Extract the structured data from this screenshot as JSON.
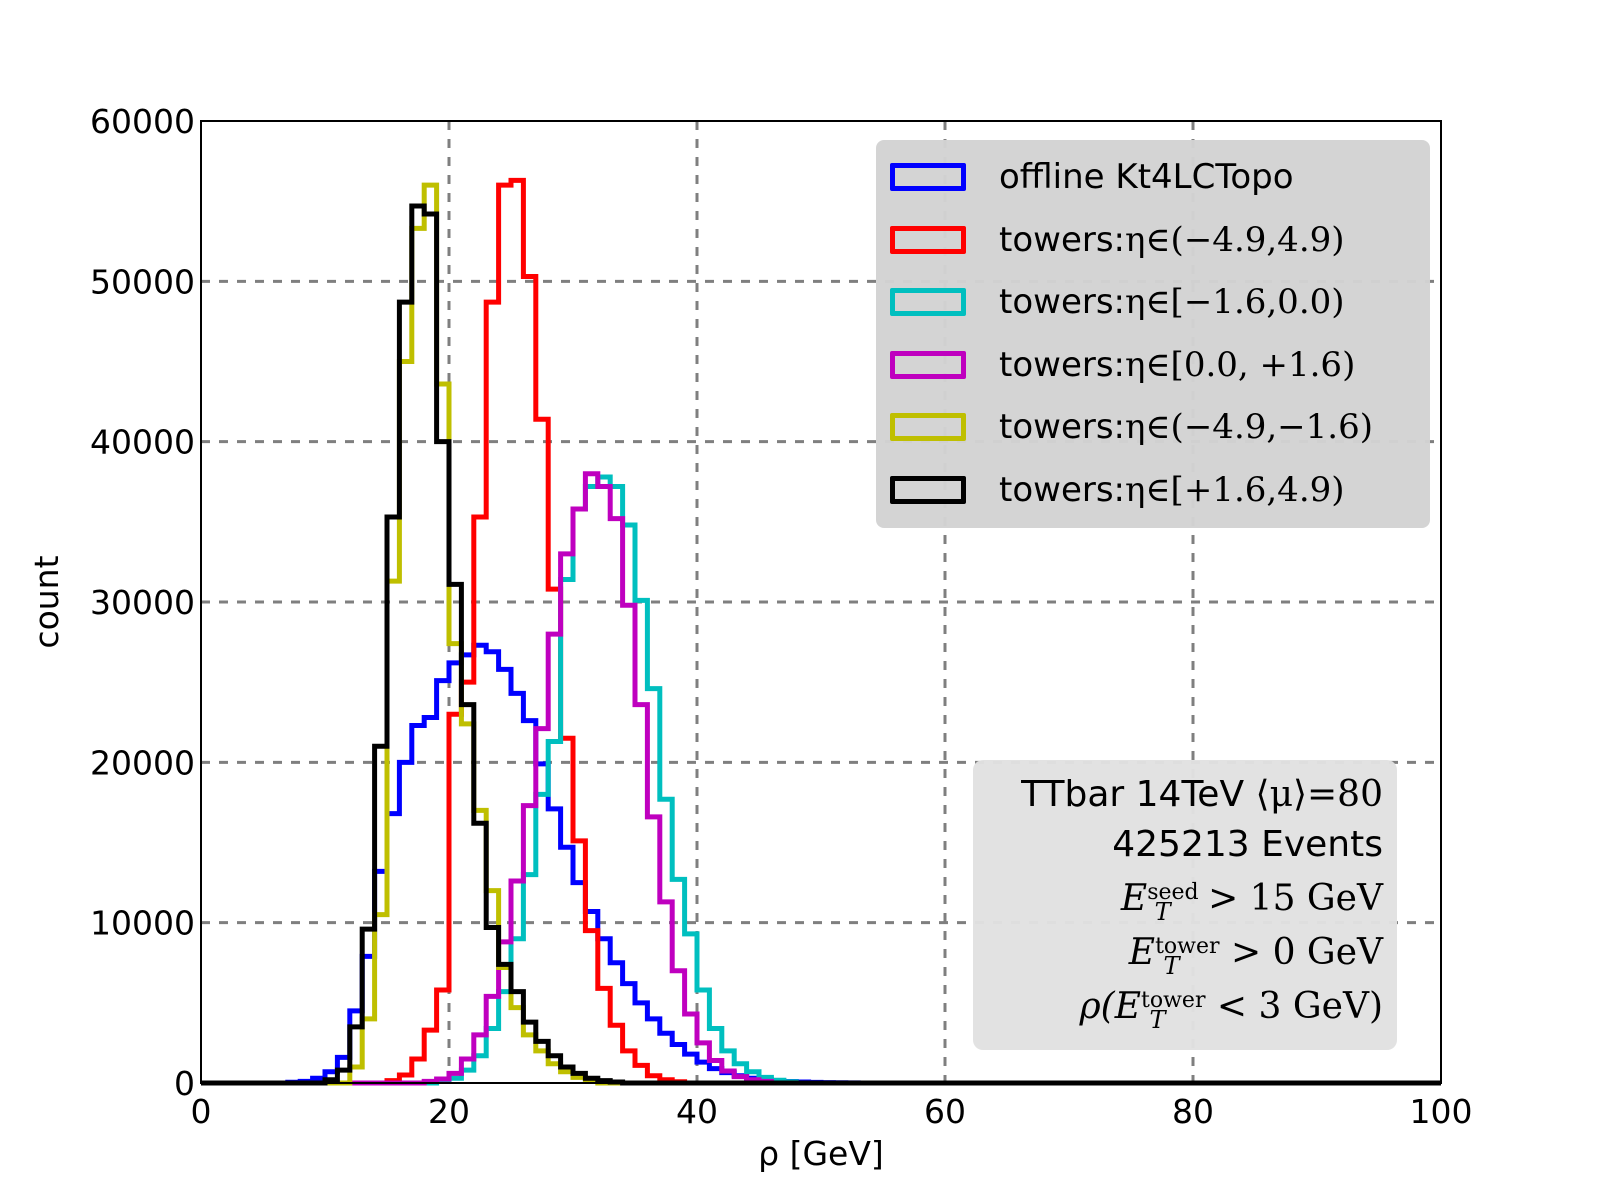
{
  "chart_data": {
    "type": "line",
    "subtype": "step-histogram",
    "xlabel": "ρ [GeV]",
    "ylabel": "count",
    "xlim": [
      0,
      100
    ],
    "ylim": [
      0,
      60000
    ],
    "xticks": [
      "0",
      "20",
      "40",
      "60",
      "80",
      "100"
    ],
    "xtick_values": [
      0,
      20,
      40,
      60,
      80,
      100
    ],
    "yticks": [
      "0",
      "10000",
      "20000",
      "30000",
      "40000",
      "50000",
      "60000"
    ],
    "ytick_values": [
      0,
      10000,
      20000,
      30000,
      40000,
      50000,
      60000
    ],
    "grid": true,
    "bin_width": 1,
    "legend_position": "top-right",
    "series": [
      {
        "name": "offline Kt4LCTopo",
        "color": "#0000ff",
        "start_bin": 7,
        "values": [
          50,
          100,
          300,
          700,
          1600,
          4500,
          7900,
          13200,
          16800,
          20000,
          22300,
          22800,
          25100,
          26200,
          26700,
          27300,
          26900,
          25800,
          24300,
          22600,
          19900,
          17100,
          14700,
          12500,
          10700,
          9000,
          7500,
          6200,
          5000,
          4000,
          3100,
          2400,
          1800,
          1300,
          900,
          650,
          450,
          300,
          200,
          130,
          90,
          60,
          40,
          25,
          15,
          10
        ]
      },
      {
        "name": "towers: η∈(−4.9,4.9)",
        "color": "#ff0000",
        "start_bin": 15,
        "values": [
          150,
          500,
          1500,
          3300,
          5800,
          23000,
          25000,
          35300,
          48700,
          56000,
          56300,
          50300,
          41400,
          30800,
          21500,
          15100,
          9500,
          5900,
          3600,
          2000,
          1100,
          450,
          200,
          80
        ]
      },
      {
        "name": "towers: η∈[−1.6,0.0)",
        "color": "#00bfbf",
        "start_bin": 19,
        "values": [
          100,
          300,
          800,
          1700,
          3400,
          5700,
          9000,
          13000,
          18000,
          21300,
          31400,
          35800,
          37200,
          37800,
          37200,
          34800,
          30100,
          24600,
          17700,
          12700,
          9300,
          5800,
          3400,
          2000,
          1200,
          700,
          350,
          170,
          80
        ]
      },
      {
        "name": "towers: η∈[0.0, +1.6)",
        "color": "#bf00bf",
        "start_bin": 18,
        "values": [
          100,
          250,
          600,
          1500,
          3000,
          5400,
          8800,
          12600,
          17300,
          22100,
          28000,
          33000,
          35800,
          38000,
          37200,
          35200,
          29800,
          23600,
          16600,
          11300,
          7000,
          4300,
          2500,
          1400,
          750,
          400,
          200,
          100
        ]
      },
      {
        "name": "towers: η∈(−4.9,−1.6)",
        "color": "#bfbf00",
        "start_bin": 12,
        "values": [
          1000,
          4000,
          10500,
          31300,
          45000,
          53300,
          56000,
          43600,
          27400,
          22400,
          17000,
          12000,
          7200,
          4700,
          3000,
          2000,
          1200,
          700,
          350,
          150
        ]
      },
      {
        "name": "towers: η∈[+1.6,4.9)",
        "color": "#000000",
        "start_bin": 10,
        "values": [
          200,
          800,
          3500,
          9600,
          21000,
          35300,
          48700,
          54700,
          54200,
          40000,
          31100,
          23600,
          16200,
          9700,
          7400,
          5700,
          3800,
          2600,
          1700,
          1000,
          600,
          300,
          150,
          60
        ]
      }
    ]
  },
  "legend": {
    "items": [
      {
        "text": "offline Kt4LCTopo",
        "math": "",
        "color": "#0000ff"
      },
      {
        "text": "towers: ",
        "math": "η∈(−4.9,4.9)",
        "color": "#ff0000"
      },
      {
        "text": "towers: ",
        "math": "η∈[−1.6,0.0)",
        "color": "#00bfbf"
      },
      {
        "text": "towers: ",
        "math": "η∈[0.0, +1.6)",
        "color": "#bf00bf"
      },
      {
        "text": "towers: ",
        "math": "η∈(−4.9,−1.6)",
        "color": "#bfbf00"
      },
      {
        "text": "towers: ",
        "math": "η∈[+1.6,4.9)",
        "color": "#000000"
      }
    ]
  },
  "annotation": {
    "line1_text": "TTbar 14TeV ",
    "line1_math": "⟨μ⟩=80",
    "line2": "425213 Events",
    "line3": {
      "base": "E",
      "sub": "T",
      "sup": "seed",
      "rest": " > 15 GeV"
    },
    "line4": {
      "base": "E",
      "sub": "T",
      "sup": "tower",
      "rest": " > 0 GeV"
    },
    "line5": {
      "prefix": "ρ(",
      "base": "E",
      "sub": "T",
      "sup": "tower",
      "rest": " < 3 GeV)"
    }
  }
}
